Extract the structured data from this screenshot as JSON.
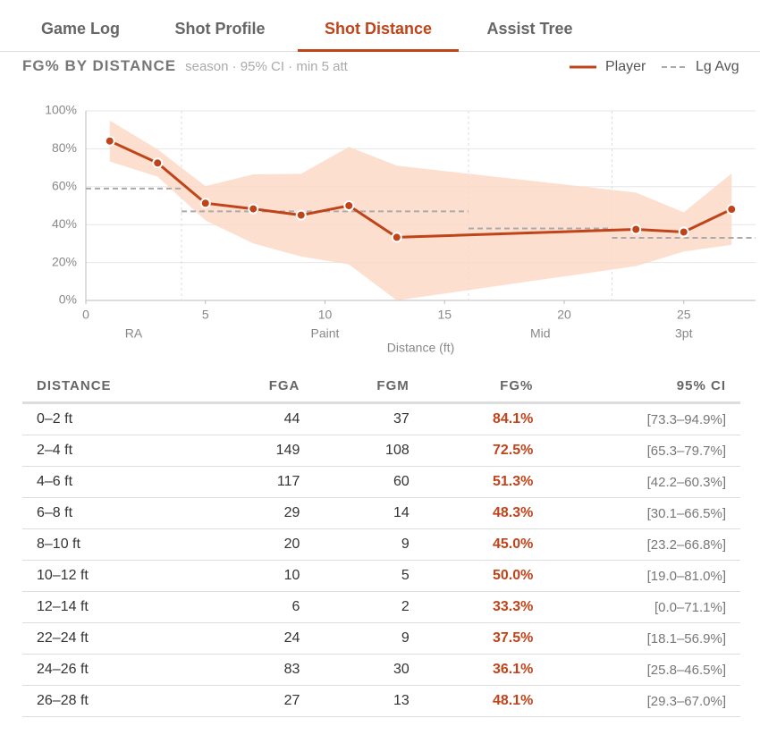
{
  "tabs": [
    "Game Log",
    "Shot Profile",
    "Shot Distance",
    "Assist Tree"
  ],
  "active_tab": 2,
  "chart_data": {
    "type": "line",
    "title": "FG% BY DISTANCE",
    "subtitle": "season · 95% CI · min 5 att",
    "x_label": "Distance (ft)",
    "xlim": [
      0,
      28
    ],
    "xticks": [
      0,
      5,
      10,
      15,
      20,
      25
    ],
    "ylim": [
      0,
      100
    ],
    "yticks": [
      {
        "value": 0,
        "label": "0%"
      },
      {
        "value": 20,
        "label": "20%"
      },
      {
        "value": 40,
        "label": "40%"
      },
      {
        "value": 60,
        "label": "60%"
      },
      {
        "value": 80,
        "label": "80%"
      },
      {
        "value": 100,
        "label": "100%"
      }
    ],
    "grid": true,
    "legend": "top-right",
    "series": [
      {
        "name": "Player",
        "color": "#c0441a",
        "band_color": "#fdd9c8",
        "x": [
          1,
          3,
          5,
          7,
          9,
          11,
          13,
          23,
          25,
          27
        ],
        "values": [
          84.1,
          72.5,
          51.3,
          48.3,
          45.0,
          50.0,
          33.3,
          37.5,
          36.1,
          48.1
        ],
        "ci_low": [
          73.3,
          65.3,
          42.2,
          30.1,
          23.2,
          19.0,
          0.0,
          18.1,
          25.8,
          29.3
        ],
        "ci_high": [
          94.9,
          79.7,
          60.3,
          66.5,
          66.8,
          81.0,
          71.1,
          56.9,
          46.5,
          67.0
        ]
      }
    ],
    "league_avg": {
      "name": "Lg Avg",
      "color": "#aaaaaa",
      "zones": [
        {
          "label": "RA",
          "from": 0,
          "to": 4,
          "value": 59
        },
        {
          "label": "Paint",
          "from": 4,
          "to": 16,
          "value": 47
        },
        {
          "label": "Mid",
          "from": 16,
          "to": 22,
          "value": 38
        },
        {
          "label": "3pt",
          "from": 22,
          "to": 28,
          "value": 33
        }
      ]
    }
  },
  "table": {
    "headers": [
      "DISTANCE",
      "FGA",
      "FGM",
      "FG%",
      "95% CI"
    ],
    "rows": [
      [
        "0–2 ft",
        "44",
        "37",
        "84.1%",
        "[73.3–94.9%]"
      ],
      [
        "2–4 ft",
        "149",
        "108",
        "72.5%",
        "[65.3–79.7%]"
      ],
      [
        "4–6 ft",
        "117",
        "60",
        "51.3%",
        "[42.2–60.3%]"
      ],
      [
        "6–8 ft",
        "29",
        "14",
        "48.3%",
        "[30.1–66.5%]"
      ],
      [
        "8–10 ft",
        "20",
        "9",
        "45.0%",
        "[23.2–66.8%]"
      ],
      [
        "10–12 ft",
        "10",
        "5",
        "50.0%",
        "[19.0–81.0%]"
      ],
      [
        "12–14 ft",
        "6",
        "2",
        "33.3%",
        "[0.0–71.1%]"
      ],
      [
        "22–24 ft",
        "24",
        "9",
        "37.5%",
        "[18.1–56.9%]"
      ],
      [
        "24–26 ft",
        "83",
        "30",
        "36.1%",
        "[25.8–46.5%]"
      ],
      [
        "26–28 ft",
        "27",
        "13",
        "48.1%",
        "[29.3–67.0%]"
      ]
    ]
  }
}
